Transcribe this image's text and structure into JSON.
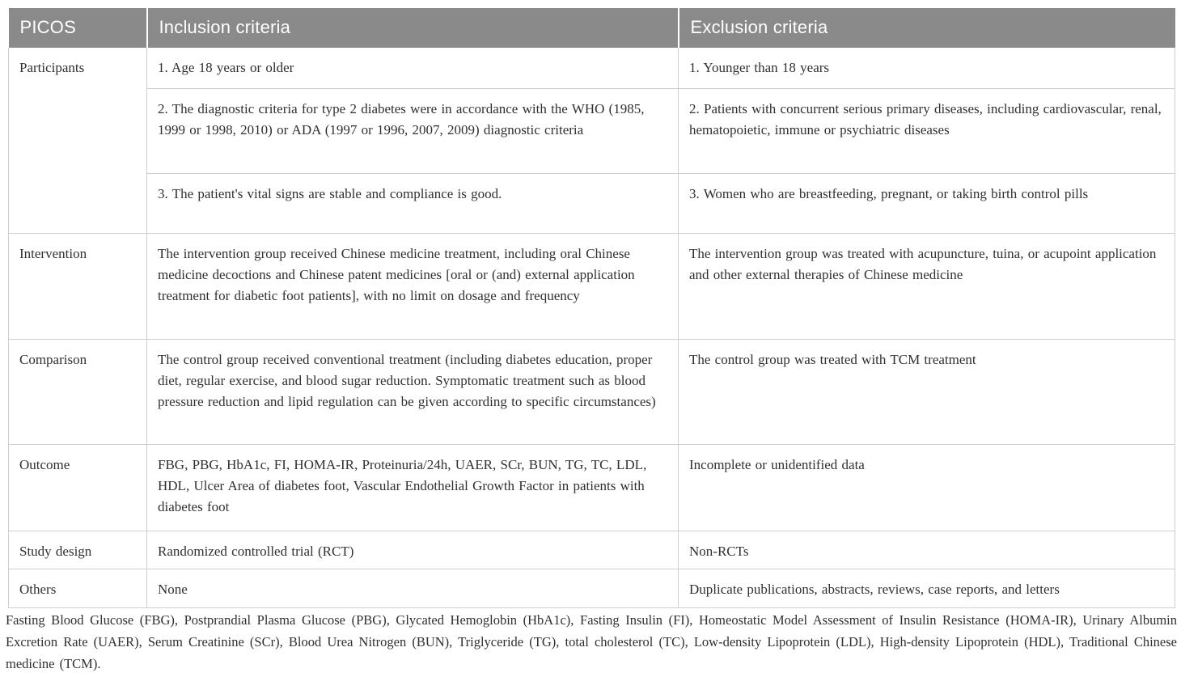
{
  "colors": {
    "header_background": "#8a8a8a",
    "header_text": "#ffffff",
    "body_text": "#303030",
    "border": "#cfcfcf",
    "page_background": "#ffffff"
  },
  "table": {
    "header": {
      "picos": "PICOS",
      "inclusion": "Inclusion criteria",
      "exclusion": "Exclusion criteria"
    },
    "rows": {
      "participants": {
        "label": "Participants",
        "sub": [
          {
            "inclusion": "1. Age 18 years or older",
            "exclusion": "1. Younger than 18 years"
          },
          {
            "inclusion": "2. The diagnostic criteria for type 2 diabetes were in accordance with the WHO (1985, 1999 or 1998, 2010) or ADA (1997 or 1996, 2007, 2009) diagnostic criteria",
            "exclusion": "2. Patients with concurrent serious primary diseases, including cardiovascular, renal, hematopoietic, immune or psychiatric diseases"
          },
          {
            "inclusion": "3. The patient's vital signs are stable and compliance is good.",
            "exclusion": "3. Women who are breastfeeding, pregnant, or taking birth control pills"
          }
        ]
      },
      "intervention": {
        "label": "Intervention",
        "inclusion": "The intervention group received Chinese medicine treatment, including oral Chinese medicine decoctions and Chinese patent medicines [oral or (and) external application treatment for diabetic foot patients], with no limit on dosage and frequency",
        "exclusion": "The intervention group was treated with acupuncture, tuina, or acupoint application and other external therapies of Chinese medicine"
      },
      "comparison": {
        "label": "Comparison",
        "inclusion": "The control group received conventional treatment (including diabetes education, proper diet, regular exercise, and blood sugar reduction. Symptomatic treatment such as blood pressure reduction and lipid regulation can be given according to specific circumstances)",
        "exclusion": "The control group was treated with TCM treatment"
      },
      "outcome": {
        "label": "Outcome",
        "inclusion": "FBG, PBG, HbA1c, FI, HOMA-IR, Proteinuria/24h, UAER, SCr, BUN, TG, TC, LDL, HDL, Ulcer Area of diabetes foot, Vascular Endothelial Growth Factor in patients with diabetes foot",
        "exclusion": "Incomplete or unidentified data"
      },
      "study_design": {
        "label": "Study design",
        "inclusion": "Randomized controlled trial (RCT)",
        "exclusion": "Non-RCTs"
      },
      "others": {
        "label": "Others",
        "inclusion": "None",
        "exclusion": "Duplicate publications, abstracts, reviews, case reports, and letters"
      }
    },
    "footnote": "Fasting Blood Glucose (FBG), Postprandial Plasma Glucose (PBG), Glycated Hemoglobin (HbA1c), Fasting Insulin (FI), Homeostatic Model Assessment of Insulin Resistance (HOMA-IR), Urinary Albumin Excretion Rate (UAER), Serum Creatinine (SCr), Blood Urea Nitrogen (BUN), Triglyceride (TG), total cholesterol (TC), Low-density Lipoprotein (LDL), High-density Lipoprotein (HDL), Traditional Chinese medicine (TCM)."
  }
}
